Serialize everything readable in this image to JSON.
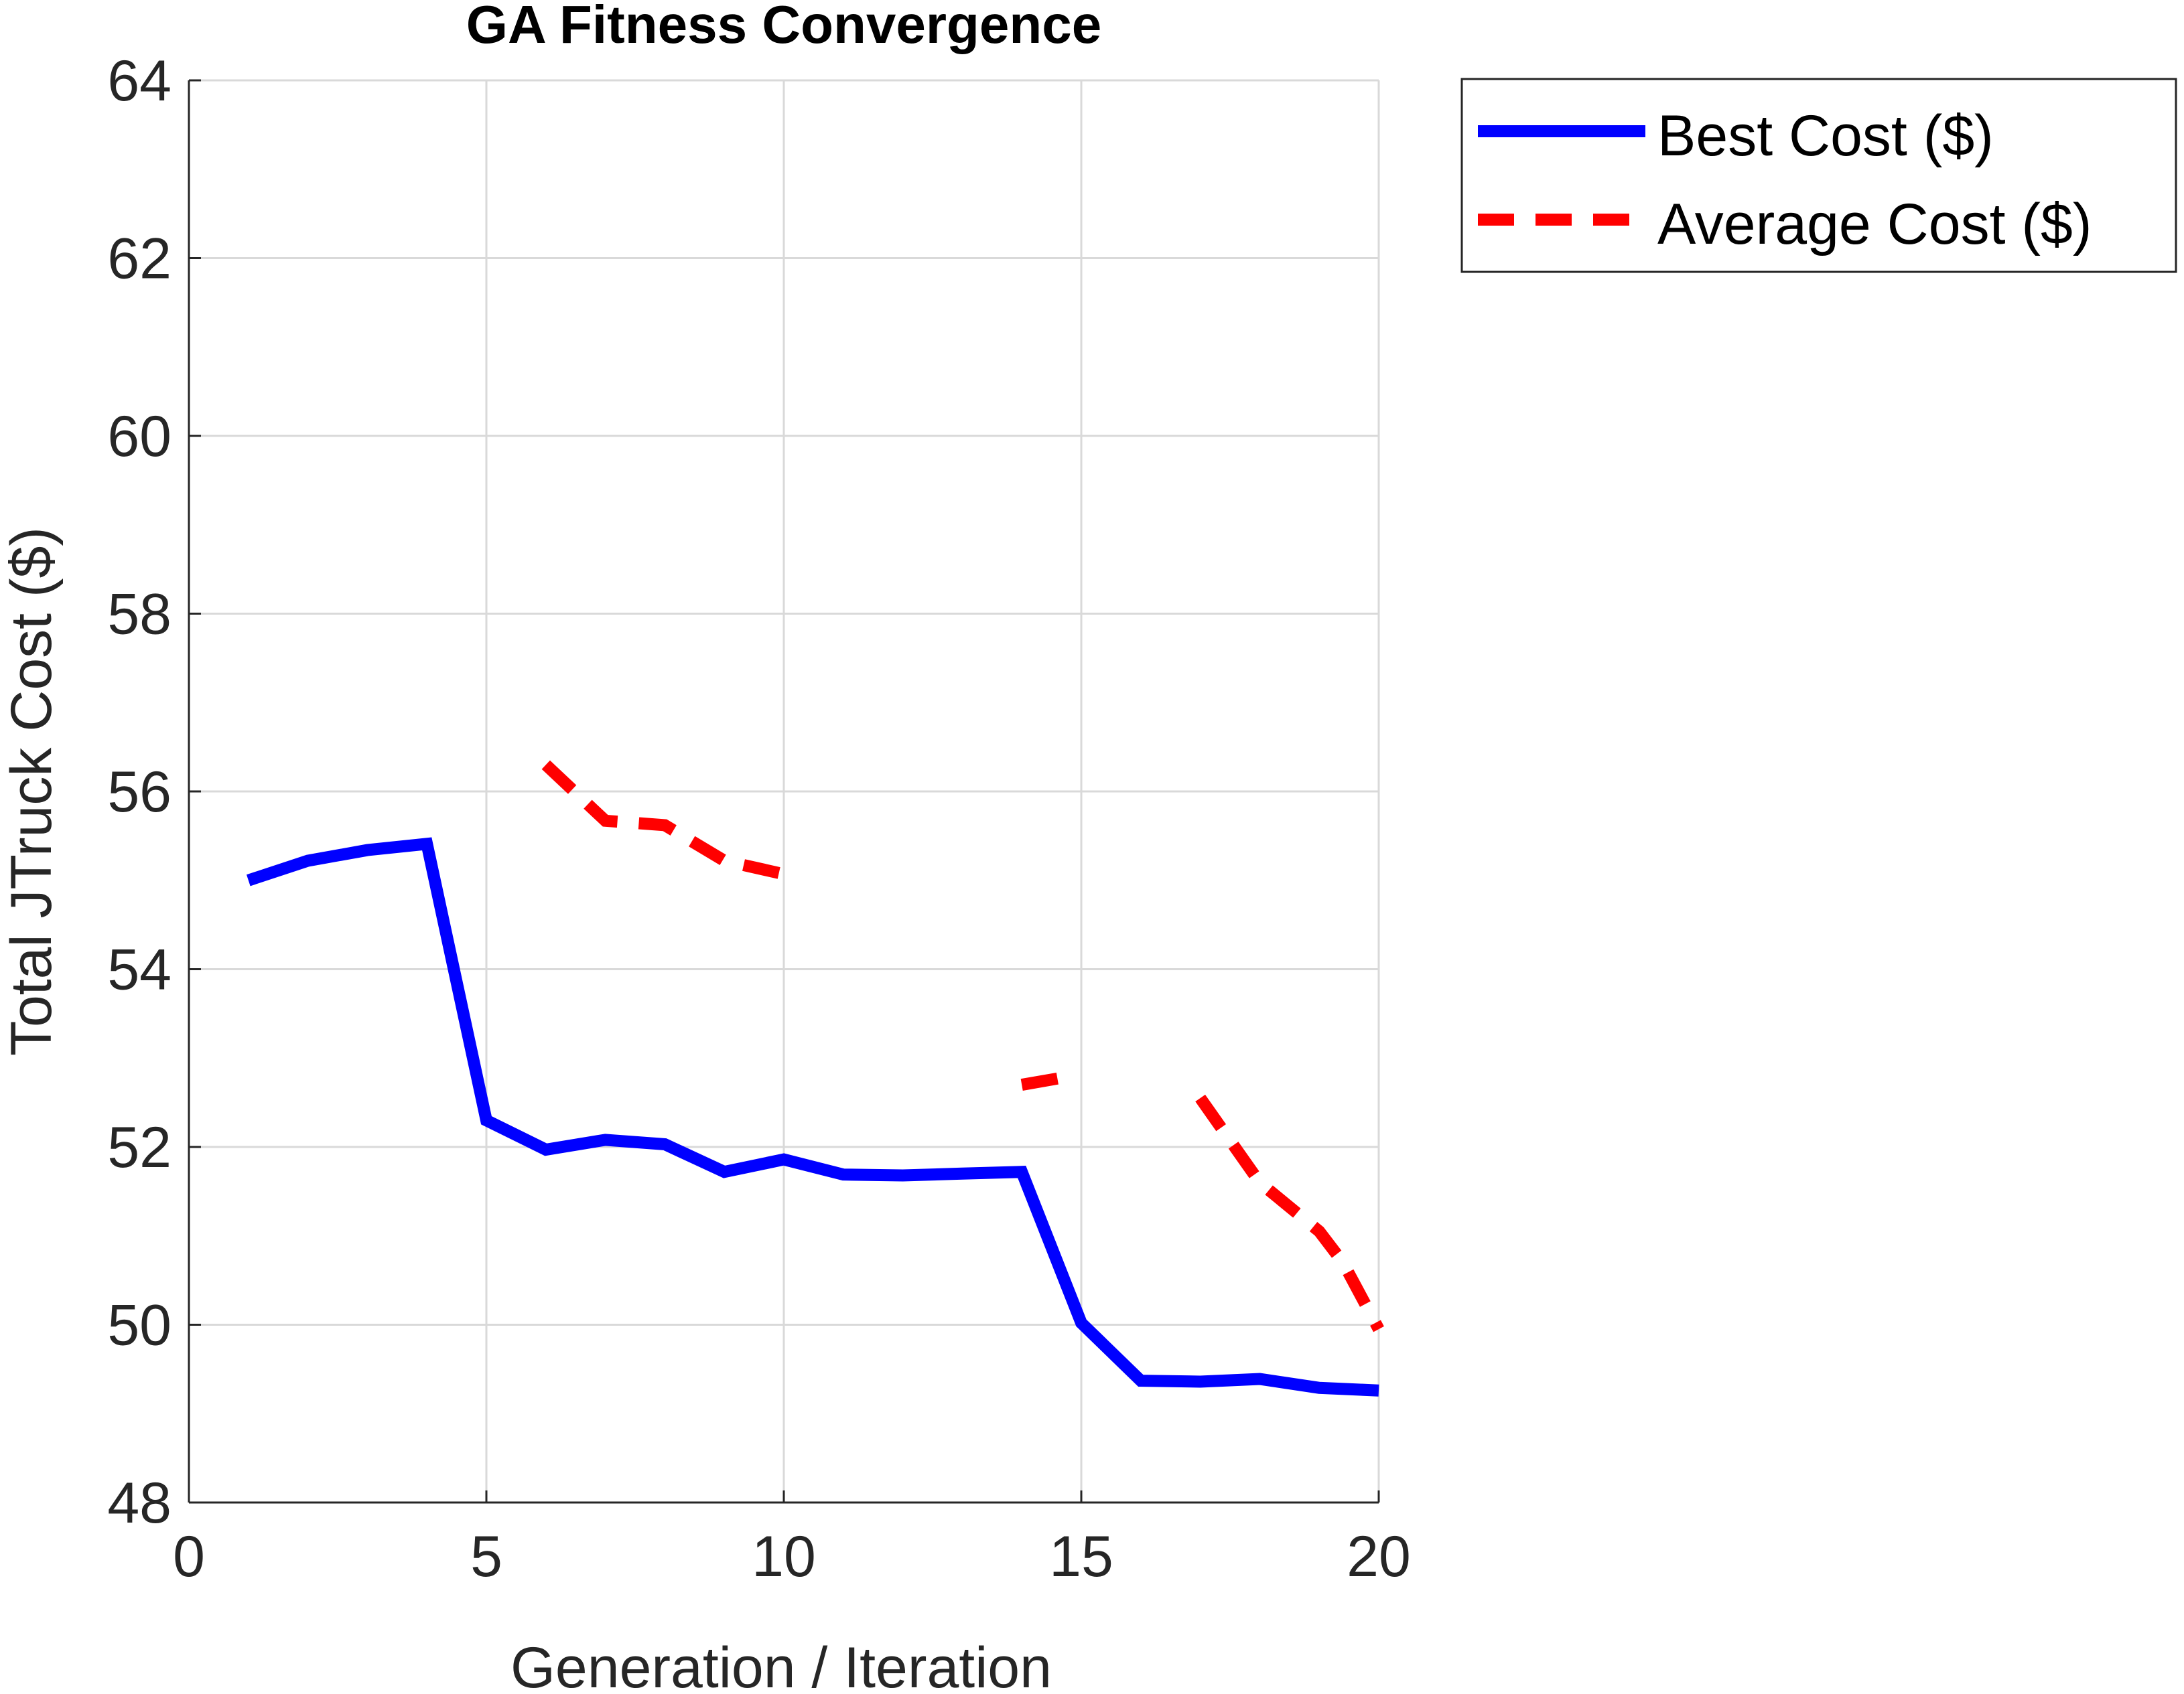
{
  "chart_data": {
    "type": "line",
    "title": "GA Fitness Convergence",
    "xlabel": "Generation / Iteration",
    "ylabel": "Total JTruck Cost ($)",
    "xlim": [
      0,
      20
    ],
    "ylim": [
      48,
      64
    ],
    "xticks": [
      0,
      5,
      10,
      15,
      20
    ],
    "yticks": [
      48,
      50,
      52,
      54,
      56,
      58,
      60,
      62,
      64
    ],
    "grid": true,
    "legend_position": "outside-top-right",
    "series": [
      {
        "name": "Best Cost ($)",
        "color": "#0000ff",
        "style": "solid",
        "x": [
          1,
          2,
          3,
          4,
          5,
          6,
          7,
          8,
          9,
          10,
          11,
          12,
          13,
          14,
          15,
          16,
          17,
          18,
          19,
          20
        ],
        "y": [
          55.0,
          55.22,
          55.34,
          55.41,
          52.3,
          51.97,
          52.08,
          52.03,
          51.72,
          51.86,
          51.69,
          51.68,
          51.7,
          51.72,
          50.02,
          49.37,
          49.36,
          49.39,
          49.29,
          49.26
        ]
      },
      {
        "name": "Average Cost ($)",
        "color": "#ff0000",
        "style": "dashed",
        "x": [
          6,
          7,
          8,
          9,
          10,
          null,
          14,
          14.6,
          null,
          17,
          18,
          19,
          19.4,
          20
        ],
        "y": [
          56.3,
          55.67,
          55.62,
          55.22,
          55.07,
          null,
          52.7,
          52.77,
          null,
          52.55,
          51.6,
          51.05,
          50.7,
          49.95
        ]
      }
    ]
  }
}
